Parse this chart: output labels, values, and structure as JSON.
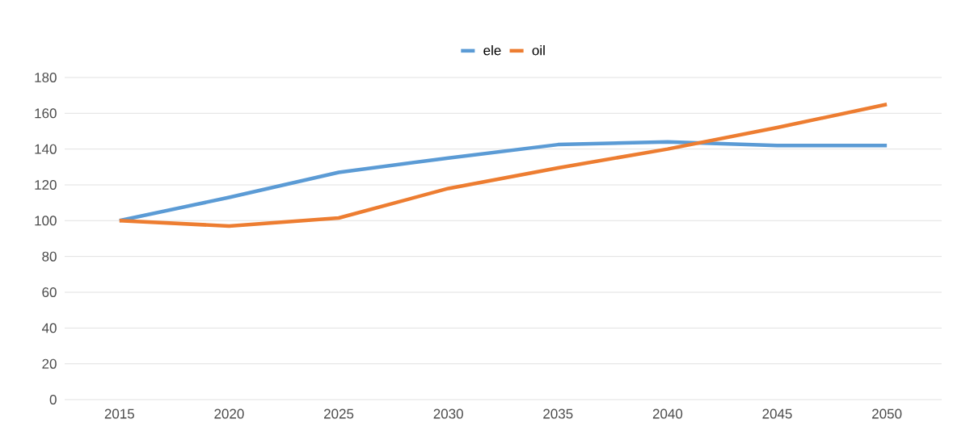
{
  "chart_data": {
    "type": "line",
    "categories": [
      "2015",
      "2020",
      "2025",
      "2030",
      "2035",
      "2040",
      "2045",
      "2050"
    ],
    "series": [
      {
        "name": "ele",
        "color": "#5b9bd5",
        "values": [
          100,
          113,
          127,
          135,
          142.5,
          144,
          142,
          142
        ]
      },
      {
        "name": "oil",
        "color": "#ed7d31",
        "values": [
          100,
          97,
          101.5,
          118,
          129.5,
          140,
          152,
          165
        ]
      }
    ],
    "ylim": [
      0,
      180
    ],
    "yticks": [
      0,
      20,
      40,
      60,
      80,
      100,
      120,
      140,
      160,
      180
    ],
    "grid": "y",
    "legend": "top",
    "marker": "none",
    "line_style": "solid"
  }
}
